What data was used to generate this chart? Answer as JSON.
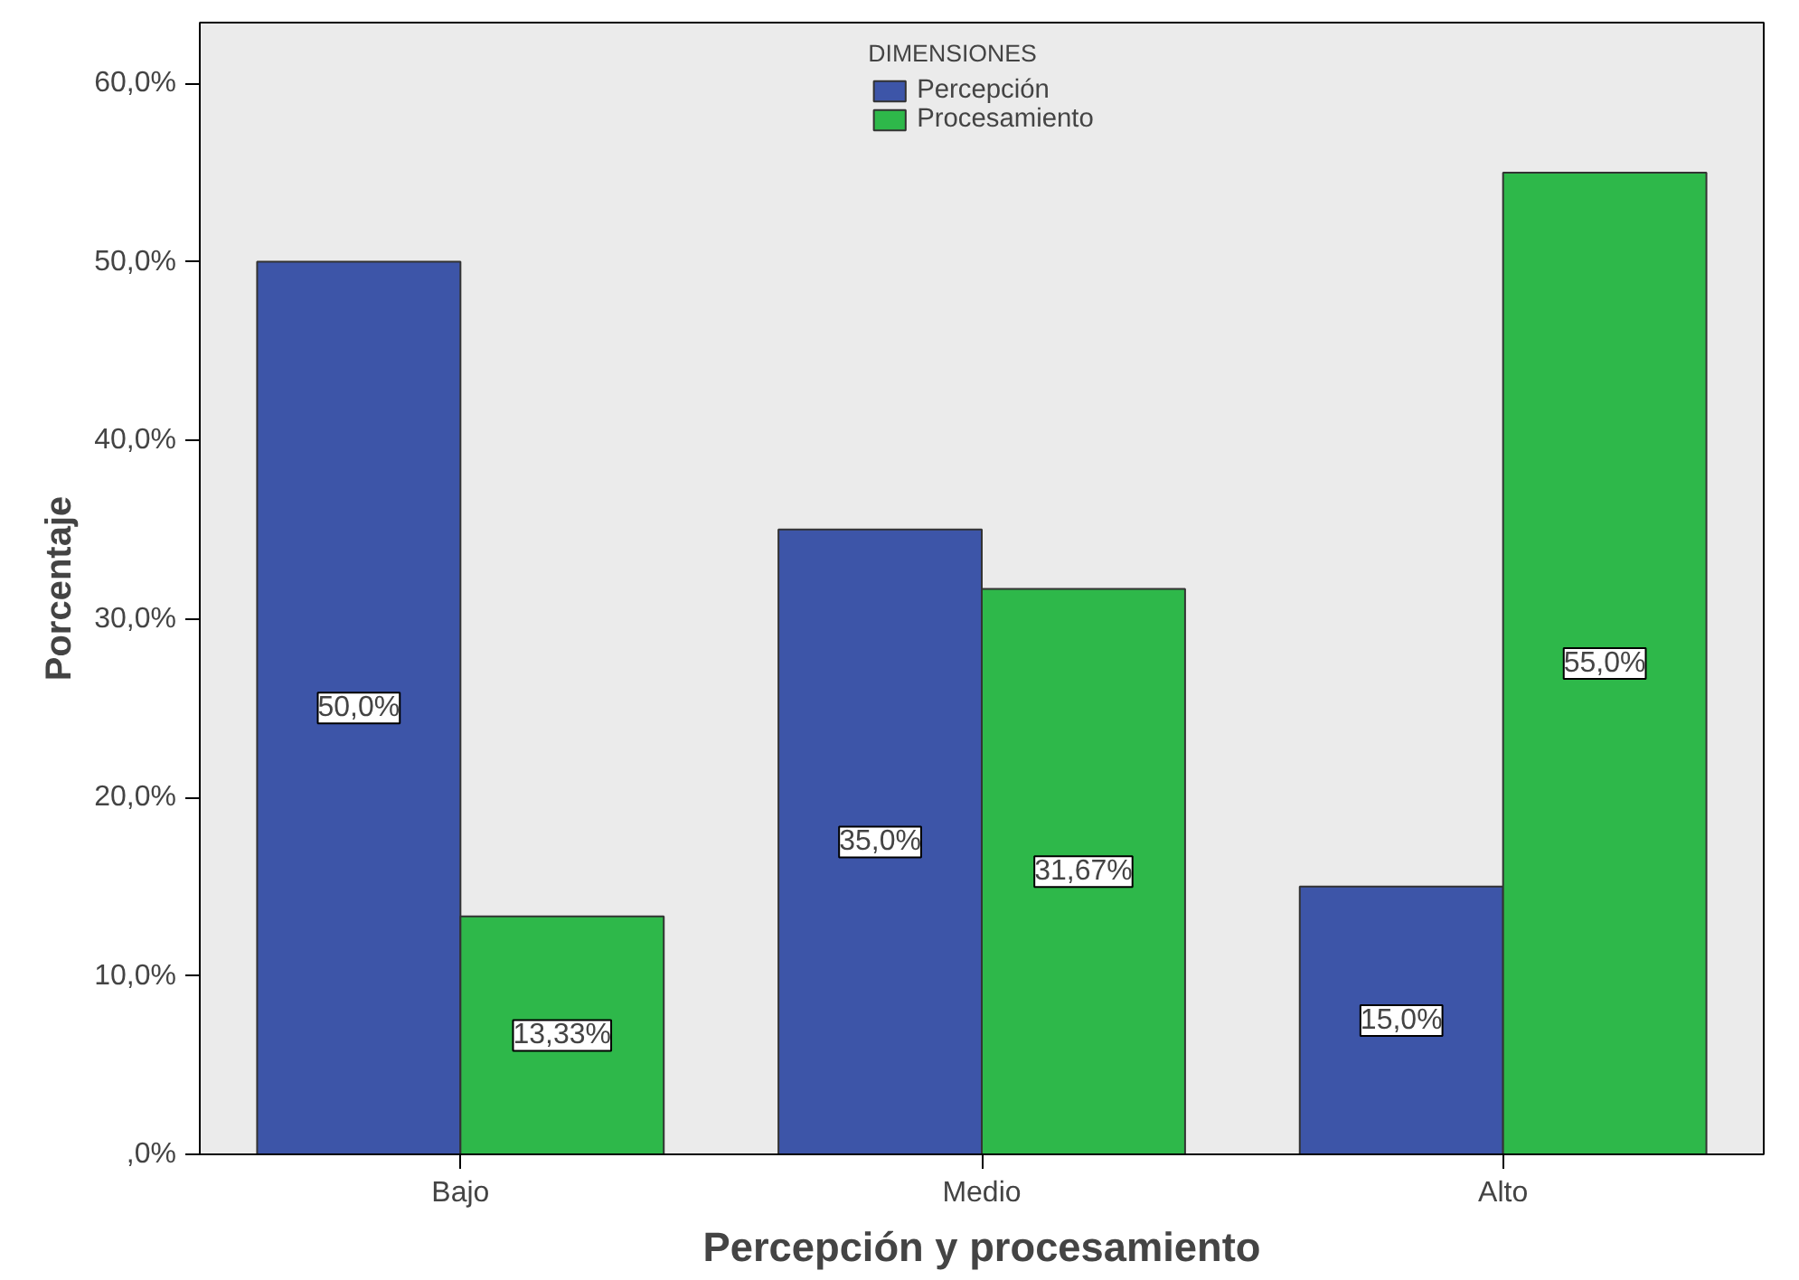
{
  "chart_data": {
    "type": "bar",
    "xlabel": "Percepción y procesamiento",
    "ylabel": "Porcentaje",
    "legend_title": "DIMENSIONES",
    "categories": [
      "Bajo",
      "Medio",
      "Alto"
    ],
    "series": [
      {
        "name": "Percepción",
        "color": "#3d55a8",
        "values": [
          50,
          35,
          15
        ],
        "value_labels": [
          "50,0%",
          "35,0%",
          "15,0%"
        ]
      },
      {
        "name": "Procesamiento",
        "color": "#2eb84a",
        "values": [
          13.33,
          31.67,
          55
        ],
        "value_labels": [
          "13,33%",
          "31,67%",
          "55,0%"
        ]
      }
    ],
    "ylim": [
      0,
      63.4
    ],
    "yticks": [
      {
        "value": 0,
        "label": ",0%"
      },
      {
        "value": 10,
        "label": "10,0%"
      },
      {
        "value": 20,
        "label": "20,0%"
      },
      {
        "value": 30,
        "label": "30,0%"
      },
      {
        "value": 40,
        "label": "40,0%"
      },
      {
        "value": 50,
        "label": "50,0%"
      },
      {
        "value": 60,
        "label": "60,0%"
      }
    ],
    "grid": false,
    "legend": "top"
  }
}
